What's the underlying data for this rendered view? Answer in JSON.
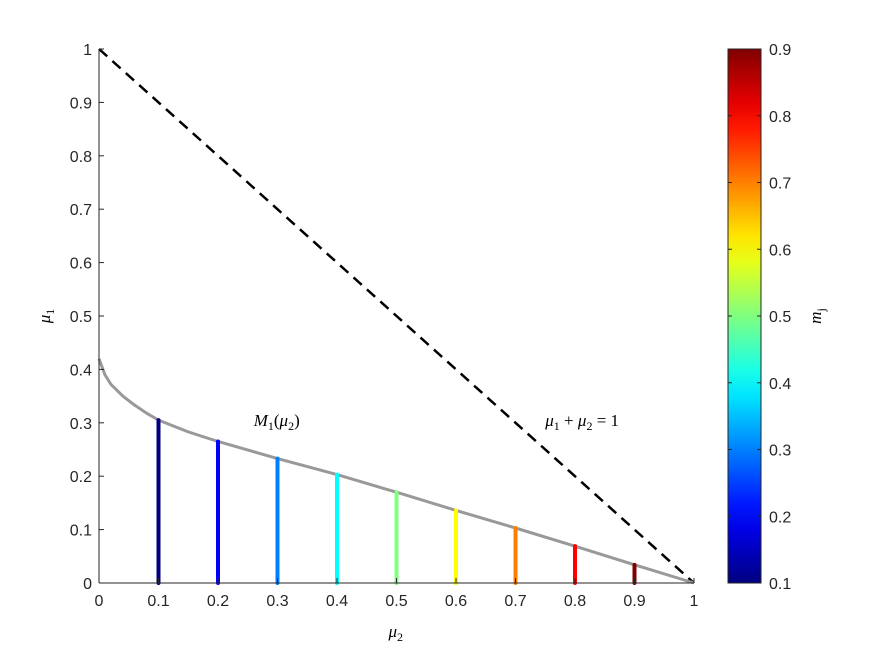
{
  "chart_data": {
    "type": "line",
    "title": "",
    "xlabel": {
      "base": "μ",
      "sub": "2"
    },
    "ylabel": {
      "base": "μ",
      "sub": "1"
    },
    "xlim": [
      0,
      1
    ],
    "ylim": [
      0,
      1
    ],
    "x_ticks": [
      "0",
      "0.1",
      "0.2",
      "0.3",
      "0.4",
      "0.5",
      "0.6",
      "0.7",
      "0.8",
      "0.9",
      "1"
    ],
    "y_ticks": [
      "0",
      "0.1",
      "0.2",
      "0.3",
      "0.4",
      "0.5",
      "0.6",
      "0.7",
      "0.8",
      "0.9",
      "1"
    ],
    "grid": false,
    "series": [
      {
        "style": "dashed",
        "color": "#000000",
        "x": [
          0,
          1
        ],
        "y": [
          1,
          0
        ]
      },
      {
        "style": "solid",
        "color": "#999999",
        "x": [
          0,
          0.01,
          0.02,
          0.04,
          0.06,
          0.08,
          0.1,
          0.15,
          0.2,
          0.3,
          0.4,
          0.5,
          0.6,
          0.7,
          0.8,
          0.9,
          1.0
        ],
        "y": [
          0.42,
          0.39,
          0.372,
          0.35,
          0.333,
          0.318,
          0.305,
          0.283,
          0.265,
          0.233,
          0.203,
          0.17,
          0.136,
          0.103,
          0.069,
          0.034,
          0.0
        ]
      }
    ],
    "stems": {
      "x": [
        0.1,
        0.2,
        0.3,
        0.4,
        0.5,
        0.6,
        0.7,
        0.8,
        0.9
      ],
      "top": [
        0.305,
        0.265,
        0.233,
        0.203,
        0.17,
        0.136,
        0.103,
        0.069,
        0.034
      ],
      "m": [
        0.1,
        0.2,
        0.3,
        0.4,
        0.5,
        0.6,
        0.7,
        0.8,
        0.9
      ]
    },
    "annotations": [
      {
        "id": "curve-label",
        "x": 0.26,
        "y": 0.29,
        "parts": [
          "M",
          "1",
          "(",
          "μ",
          "2",
          ")"
        ]
      },
      {
        "id": "line-label",
        "x": 0.75,
        "y": 0.29,
        "parts": [
          "μ",
          "1",
          " + ",
          "μ",
          "2",
          " = 1"
        ]
      }
    ],
    "colorbar": {
      "label": {
        "base": "m",
        "sub": "j"
      },
      "range": [
        0.1,
        0.9
      ],
      "ticks": [
        "0.1",
        "0.2",
        "0.3",
        "0.4",
        "0.5",
        "0.6",
        "0.7",
        "0.8",
        "0.9"
      ],
      "colormap": "jet"
    }
  }
}
